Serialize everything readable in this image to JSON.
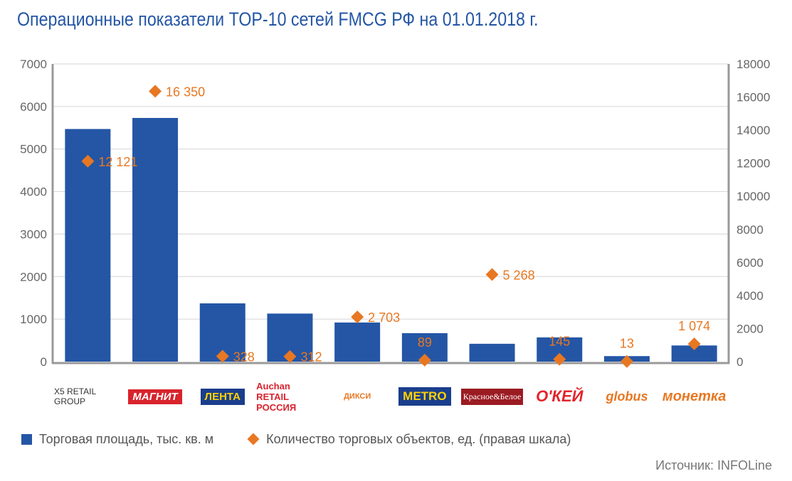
{
  "chart_data": {
    "type": "bar",
    "title": "Операционные показатели TOP-10 сетей FMCG РФ на 01.01.2018 г.",
    "categories": [
      "X5 RETAIL GROUP",
      "МАГНИТ",
      "ЛЕНТА",
      "Auchan RETAIL РОССИЯ",
      "ДИКСИ",
      "METRO",
      "Красное&Белое",
      "О'КЕЙ",
      "globus",
      "монетка"
    ],
    "series": [
      {
        "name": "Торговая площадь, тыс. кв. м",
        "type": "bar",
        "axis": "left",
        "color": "#2456a5",
        "values": [
          5470,
          5730,
          1370,
          1130,
          920,
          670,
          420,
          570,
          130,
          380
        ]
      },
      {
        "name": "Количество торговых объектов, ед. (правая шкала)",
        "type": "scatter",
        "axis": "right",
        "color": "#e87722",
        "values": [
          12121,
          16350,
          328,
          312,
          2703,
          89,
          5268,
          145,
          13,
          1074
        ],
        "labels": [
          "12 121",
          "16 350",
          "328",
          "312",
          "2 703",
          "89",
          "5 268",
          "145",
          "13",
          "1 074"
        ]
      }
    ],
    "ylim": [
      0,
      7000
    ],
    "y2lim": [
      0,
      18000
    ],
    "yticks": [
      "0",
      "1000",
      "2000",
      "3000",
      "4000",
      "5000",
      "6000",
      "7000"
    ],
    "y2ticks": [
      "0",
      "2000",
      "4000",
      "6000",
      "8000",
      "10000",
      "12000",
      "14000",
      "16000",
      "18000"
    ],
    "grid": true,
    "legend": "bottom-left"
  },
  "source": "Источник: INFOLine"
}
